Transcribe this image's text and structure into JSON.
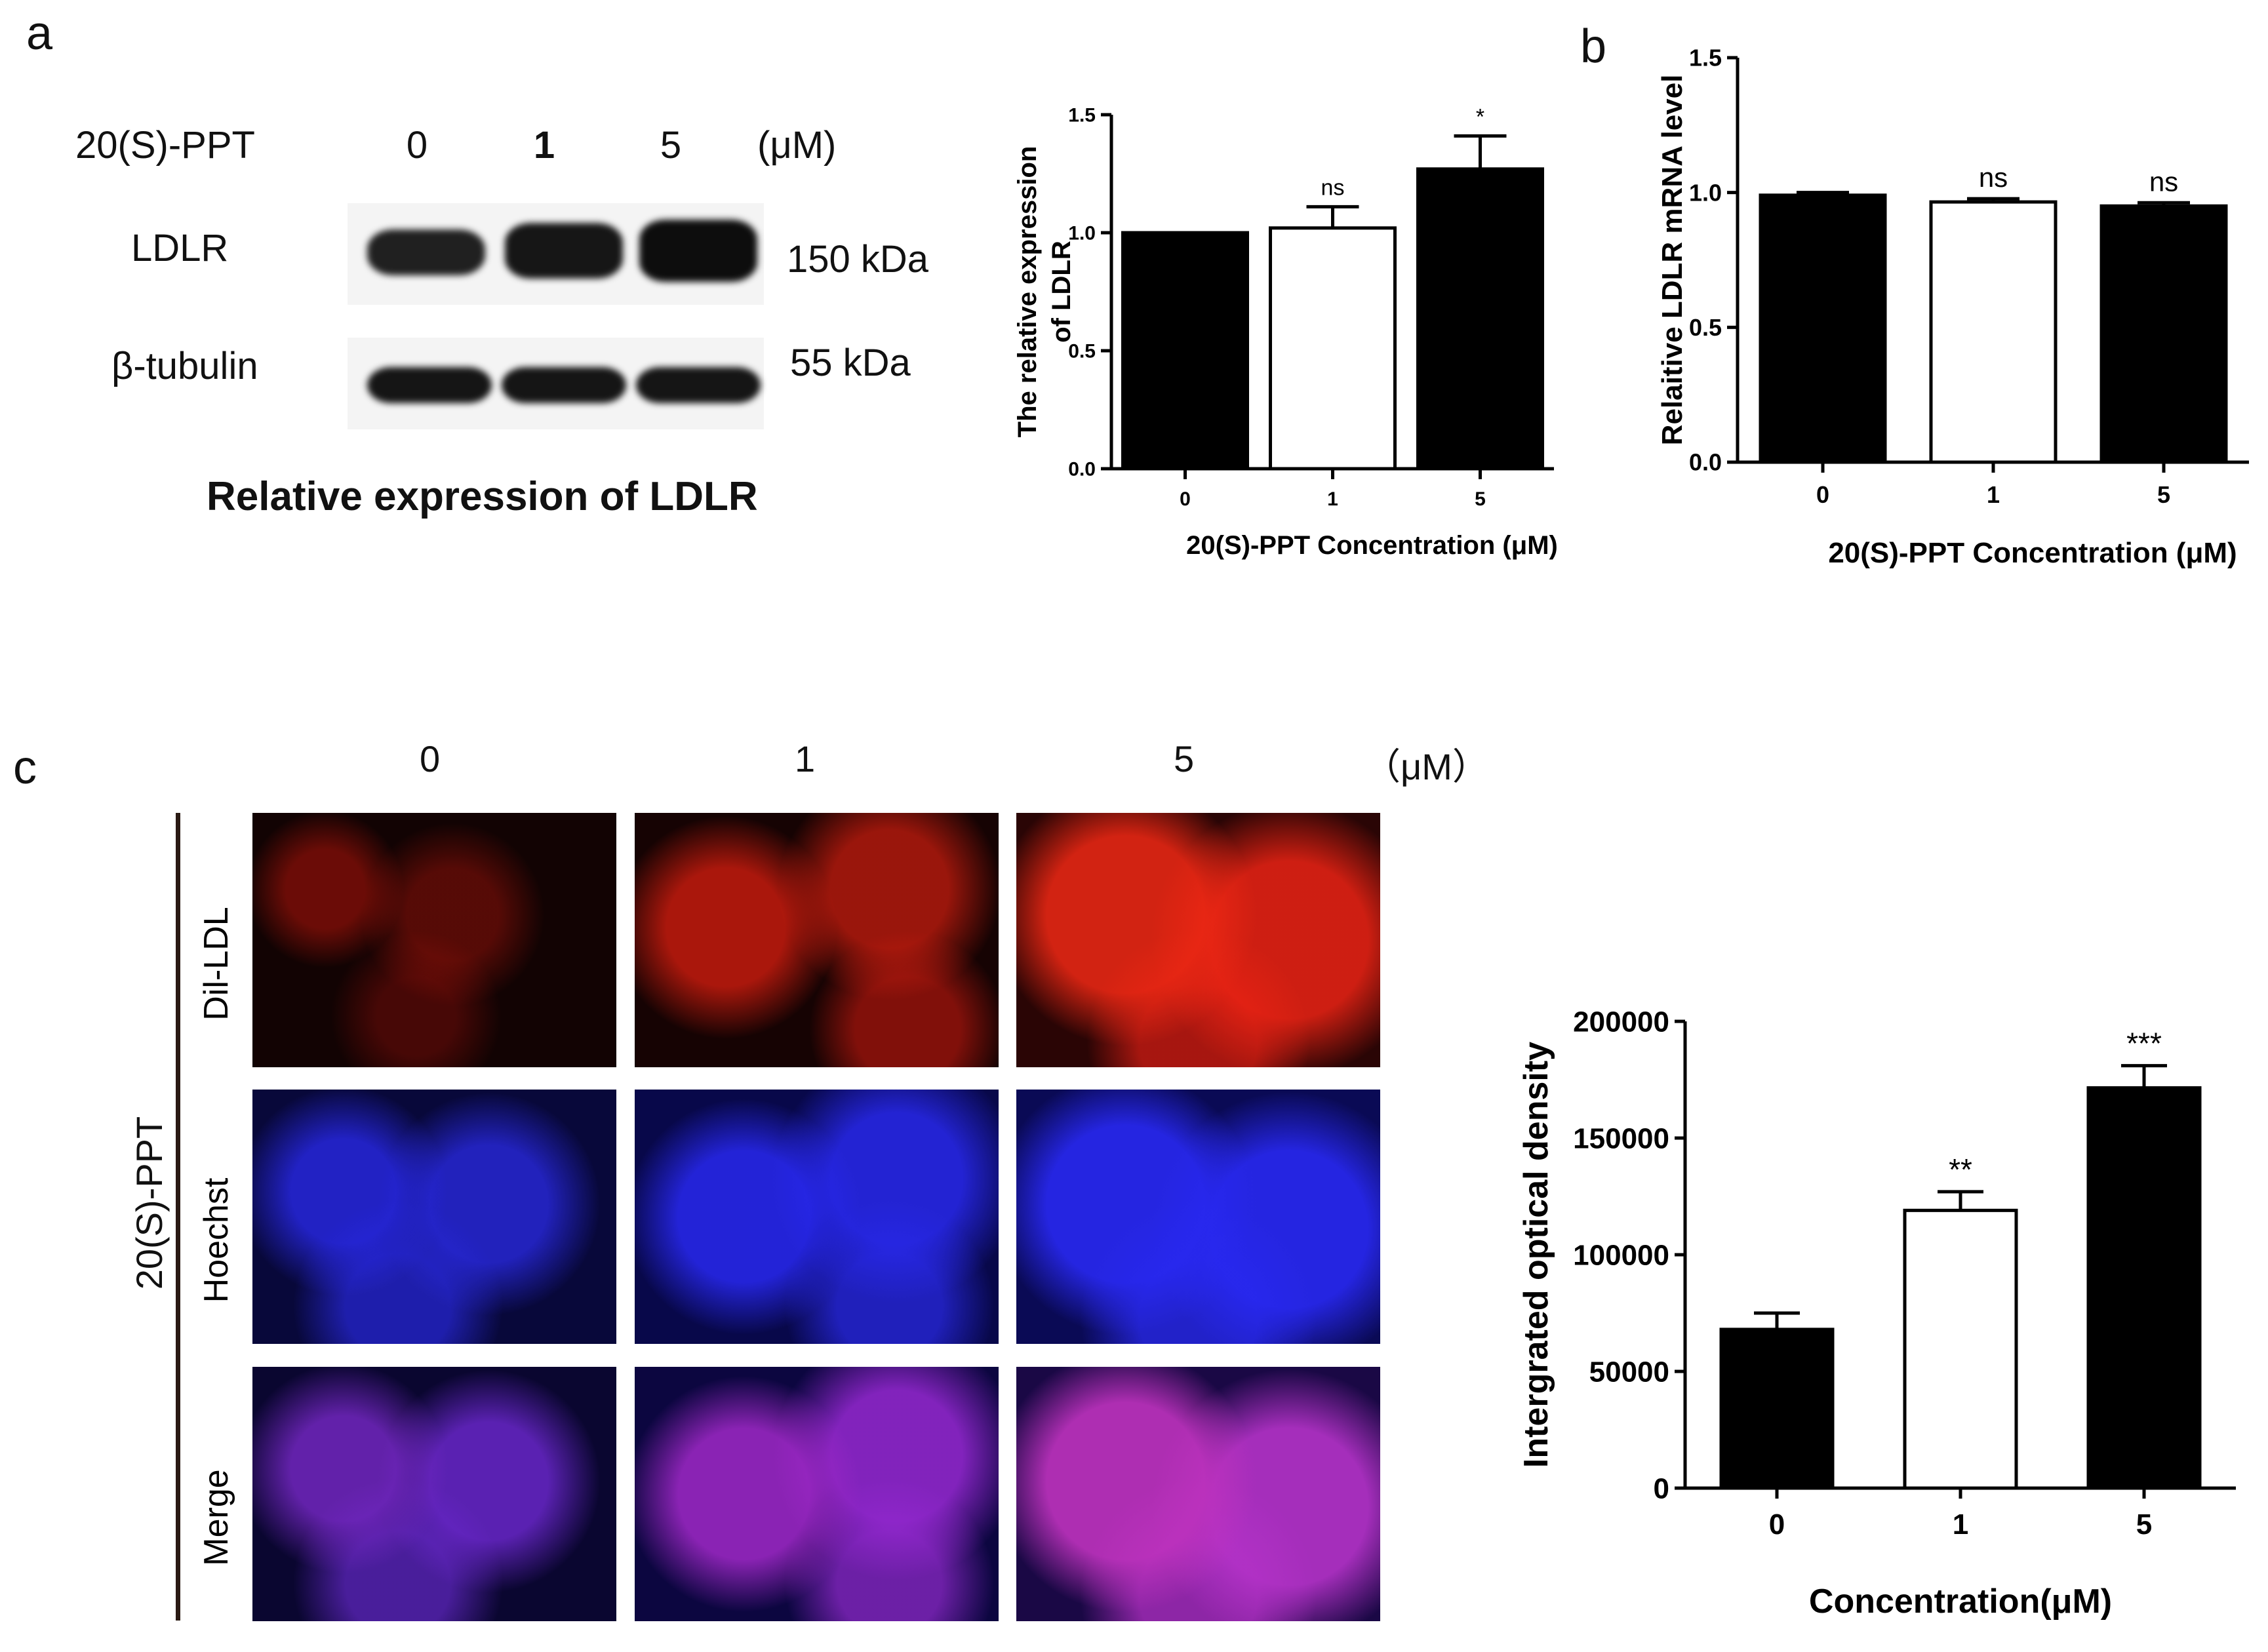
{
  "panel_a": {
    "letter": "a",
    "blot": {
      "treatment_label": "20(S)-PPT",
      "lanes": [
        "0",
        "1",
        "5"
      ],
      "unit": "(μM)",
      "rows": [
        {
          "protein": "LDLR",
          "mw": "150 kDa"
        },
        {
          "protein": "β-tubulin",
          "mw": "55 kDa"
        }
      ],
      "caption": "Relative expression of LDLR"
    }
  },
  "panel_b": {
    "letter": "b"
  },
  "panel_c": {
    "letter": "c",
    "columns": [
      "0",
      "1",
      "5"
    ],
    "unit": "（μM）",
    "group_label": "20(S)-PPT",
    "rows": [
      "Dil-LDL",
      "Hoechst",
      "Merge"
    ]
  },
  "colors": {
    "black_bar": "#000000",
    "white_bar": "#ffffff",
    "red": "#ff2a1a",
    "blue": "#1a1aff"
  },
  "chart_data": [
    {
      "id": "chart_a",
      "type": "bar",
      "categories": [
        "0",
        "1",
        "5"
      ],
      "values": [
        1.0,
        1.02,
        1.27
      ],
      "errors": [
        0,
        0.09,
        0.14
      ],
      "bar_colors": [
        "#000000",
        "#ffffff",
        "#000000"
      ],
      "annotations": [
        "",
        "ns",
        "*"
      ],
      "ylim": [
        0,
        1.5
      ],
      "yticks": [
        "0.0",
        "0.5",
        "1.0",
        "1.5"
      ],
      "ytick_values": [
        0,
        0.5,
        1.0,
        1.5
      ],
      "ylabel_lines": [
        "The relative expression",
        "of LDLR"
      ],
      "xlabel": "20(S)-PPT Concentration (μM)"
    },
    {
      "id": "chart_b",
      "type": "bar",
      "categories": [
        "0",
        "1",
        "5"
      ],
      "values": [
        0.99,
        0.965,
        0.95
      ],
      "errors": [
        0.01,
        0.012,
        0.012
      ],
      "bar_colors": [
        "#000000",
        "#ffffff",
        "#000000"
      ],
      "annotations": [
        "",
        "ns",
        "ns"
      ],
      "ylim": [
        0,
        1.5
      ],
      "yticks": [
        "0.0",
        "0.5",
        "1.0",
        "1.5"
      ],
      "ytick_values": [
        0,
        0.5,
        1.0,
        1.5
      ],
      "ylabel_lines": [
        "Relaitive LDLR mRNA level"
      ],
      "xlabel": "20(S)-PPT Concentration (μM)"
    },
    {
      "id": "chart_c",
      "type": "bar",
      "categories": [
        "0",
        "1",
        "5"
      ],
      "values": [
        68000,
        119000,
        171500
      ],
      "errors": [
        7000,
        8000,
        9500
      ],
      "bar_colors": [
        "#000000",
        "#ffffff",
        "#000000"
      ],
      "annotations": [
        "",
        "**",
        "***"
      ],
      "ylim": [
        0,
        200000
      ],
      "yticks": [
        "0",
        "50000",
        "100000",
        "150000",
        "200000"
      ],
      "ytick_values": [
        0,
        50000,
        100000,
        150000,
        200000
      ],
      "ylabel_lines": [
        "Intergrated optical density"
      ],
      "xlabel": "Concentration(μM)"
    }
  ]
}
